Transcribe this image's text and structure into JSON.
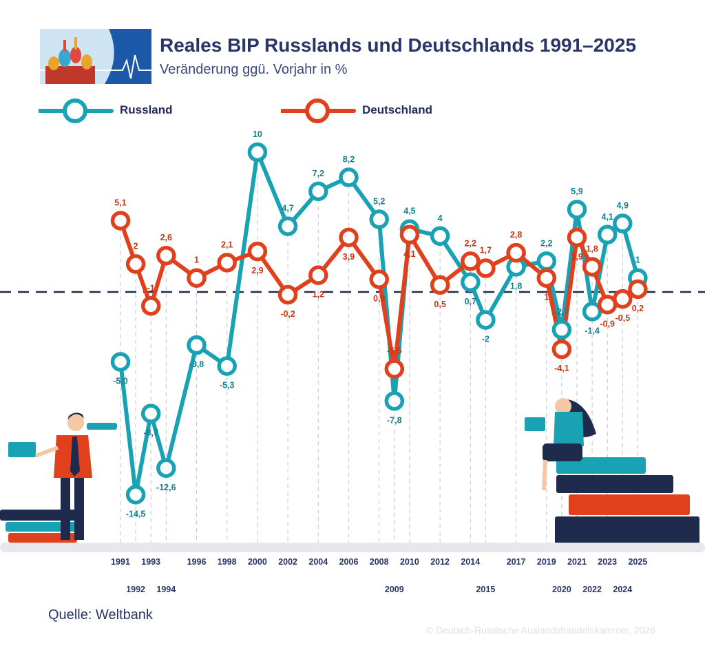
{
  "header": {
    "title": "Reales BIP Russlands und Deutschlands 1991–2025",
    "subtitle": "Veränderung ggü. Vorjahr in %"
  },
  "legend": [
    {
      "name": "Russland",
      "color": "#19a2b4"
    },
    {
      "name": "Deutschland",
      "color": "#e0401c"
    }
  ],
  "chart_data": {
    "type": "line",
    "x": [
      "1991",
      "1992",
      "1993",
      "1994",
      "1996",
      "1998",
      "2000",
      "2002",
      "2004",
      "2006",
      "2008",
      "2009",
      "2010",
      "2012",
      "2014",
      "2015",
      "2017",
      "2019",
      "2020",
      "2021",
      "2022",
      "2023",
      "2024",
      "2025"
    ],
    "series": [
      {
        "name": "Russland",
        "color": "#19a2b4",
        "values": [
          -5.0,
          -14.5,
          -8.7,
          -12.6,
          -3.8,
          -5.3,
          10,
          4.7,
          7.2,
          8.2,
          5.2,
          -7.8,
          4.5,
          4,
          0.7,
          -2,
          1.8,
          2.2,
          -2.7,
          5.9,
          -1.4,
          4.1,
          4.9,
          1
        ],
        "labels": [
          "-5,0",
          "-14,5",
          "-8,7",
          "-12,6",
          "-3,8",
          "-5,3",
          "10",
          "4,7",
          "7,2",
          "8,2",
          "5,2",
          "-7,8",
          "4,5",
          "4",
          "0,7",
          "-2",
          "1,8",
          "2,2",
          "-2,7",
          "5,9",
          "-1,4",
          "4,1",
          "4,9",
          "1"
        ]
      },
      {
        "name": "Deutschland",
        "color": "#e0401c",
        "values": [
          5.1,
          2,
          -1,
          2.6,
          1,
          2.1,
          2.9,
          -0.2,
          1.2,
          3.9,
          0.9,
          -5.5,
          4.1,
          0.5,
          2.2,
          1.7,
          2.8,
          1,
          -4.1,
          3.9,
          1.8,
          -0.9,
          -0.5,
          0.2
        ],
        "labels": [
          "5,1",
          "2",
          "-1",
          "2,6",
          "1",
          "2,1",
          "2,9",
          "-0,2",
          "1,2",
          "3,9",
          "0,9",
          "-5,5",
          "4,1",
          "0,5",
          "2,2",
          "1,7",
          "2,8",
          "1",
          "-4,1",
          "3,9",
          "1,8",
          "-0,9",
          "-0,5",
          "0,2"
        ]
      }
    ],
    "ylabel": "",
    "xlabel": "",
    "ylim": [
      -15.5,
      10.5
    ],
    "grid": "vertical dashed lines per year",
    "zero_line": "dashed"
  },
  "footer": {
    "source": "Quelle: Weltbank",
    "copyright": "© Deutsch-Russische Auslandshandelskammer, 2026"
  },
  "illustrations": [
    {
      "name": "man-with-telescope-on-books"
    },
    {
      "name": "woman-with-laptop-on-books"
    }
  ]
}
